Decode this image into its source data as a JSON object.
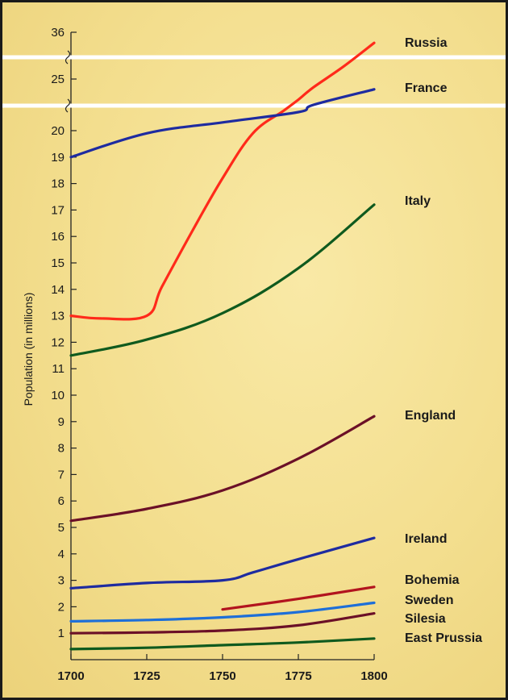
{
  "chart_data": {
    "type": "line",
    "ylabel": "Population (in millions)",
    "x_ticks": [
      "1700",
      "1725",
      "1750",
      "1775",
      "1800"
    ],
    "y_ticks": [
      "1",
      "2",
      "3",
      "4",
      "5",
      "6",
      "7",
      "8",
      "9",
      "10",
      "11",
      "12",
      "13",
      "14",
      "15",
      "16",
      "17",
      "18",
      "19",
      "20",
      "25",
      "36"
    ],
    "axis_break": "between 20 and 25, and between 25 and 36",
    "series": [
      {
        "name": "Russia",
        "color": "#ff2a1a",
        "points": [
          [
            1700,
            13.0
          ],
          [
            1710,
            12.9
          ],
          [
            1725,
            13.0
          ],
          [
            1730,
            14.1
          ],
          [
            1740,
            16.2
          ],
          [
            1750,
            18.2
          ],
          [
            1760,
            19.9
          ],
          [
            1770,
            21.9
          ],
          [
            1775,
            23.0
          ],
          [
            1780,
            24.2
          ],
          [
            1790,
            28.0
          ],
          [
            1800,
            33.5
          ]
        ]
      },
      {
        "name": "France",
        "color": "#1e2ba0",
        "points": [
          [
            1700,
            19.0
          ],
          [
            1725,
            19.9
          ],
          [
            1750,
            20.8
          ],
          [
            1775,
            21.8
          ],
          [
            1780,
            22.5
          ],
          [
            1800,
            24.0
          ]
        ]
      },
      {
        "name": "Italy",
        "color": "#0f5a1e",
        "points": [
          [
            1700,
            11.5
          ],
          [
            1725,
            12.1
          ],
          [
            1750,
            13.1
          ],
          [
            1775,
            14.8
          ],
          [
            1800,
            17.2
          ]
        ]
      },
      {
        "name": "England",
        "color": "#6b1027",
        "points": [
          [
            1700,
            5.25
          ],
          [
            1725,
            5.7
          ],
          [
            1750,
            6.4
          ],
          [
            1775,
            7.6
          ],
          [
            1800,
            9.2
          ]
        ]
      },
      {
        "name": "Ireland",
        "color": "#1e2ba0",
        "points": [
          [
            1700,
            2.7
          ],
          [
            1725,
            2.9
          ],
          [
            1750,
            3.0
          ],
          [
            1760,
            3.3
          ],
          [
            1775,
            3.8
          ],
          [
            1800,
            4.6
          ]
        ]
      },
      {
        "name": "Bohemia",
        "color": "#b2141e",
        "points": [
          [
            1750,
            1.9
          ],
          [
            1775,
            2.3
          ],
          [
            1800,
            2.75
          ]
        ]
      },
      {
        "name": "Sweden",
        "color": "#1e6fd8",
        "points": [
          [
            1700,
            1.45
          ],
          [
            1725,
            1.5
          ],
          [
            1750,
            1.6
          ],
          [
            1775,
            1.8
          ],
          [
            1800,
            2.15
          ]
        ]
      },
      {
        "name": "Silesia",
        "color": "#6b1027",
        "points": [
          [
            1700,
            1.0
          ],
          [
            1725,
            1.03
          ],
          [
            1750,
            1.1
          ],
          [
            1775,
            1.3
          ],
          [
            1800,
            1.75
          ]
        ]
      },
      {
        "name": "East Prussia",
        "color": "#0f5a1e",
        "points": [
          [
            1700,
            0.4
          ],
          [
            1725,
            0.45
          ],
          [
            1750,
            0.55
          ],
          [
            1775,
            0.65
          ],
          [
            1800,
            0.8
          ]
        ]
      }
    ]
  }
}
